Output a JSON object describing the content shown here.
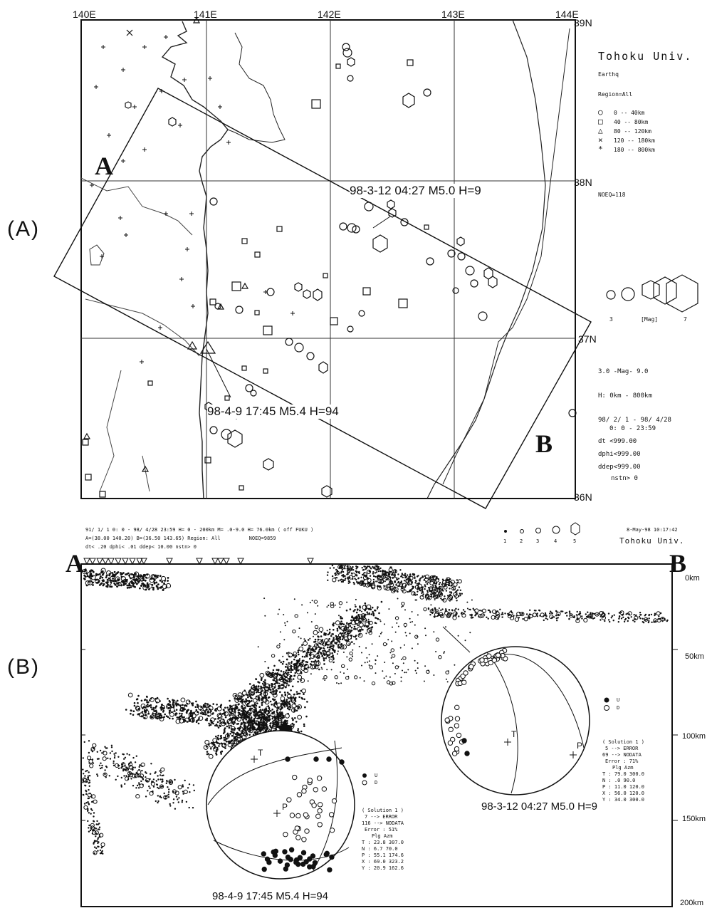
{
  "panel_a": {
    "label": "(A)",
    "lon_labels": [
      "140E",
      "141E",
      "142E",
      "143E",
      "144E"
    ],
    "lat_labels": [
      "39N",
      "38N",
      "37N",
      "36N"
    ],
    "section_start": "A",
    "section_end": "B",
    "event1_label": "98-3-12 04:27 M5.0 H=9",
    "event2_label": "98-4-9 17:45 M5.4 H=94",
    "sidebar": {
      "title": "Tohoku Univ.",
      "subtitle": "Earthq",
      "region": "Region=All",
      "depth_legend": [
        {
          "symbol": "○",
          "range": "0 -- 40km"
        },
        {
          "symbol": "□",
          "range": "40 -- 80km"
        },
        {
          "symbol": "△",
          "range": "80 -- 120km"
        },
        {
          "symbol": "×",
          "range": "120 -- 180km"
        },
        {
          "symbol": "*",
          "range": "180 -- 800km"
        }
      ],
      "noeq": "NOEQ=118",
      "mag_min": "3",
      "mag_unit": "[Mag]",
      "mag_max": "7",
      "mag_range": "3.0 -Mag- 9.0",
      "depth_range": "H: 0km - 800km",
      "date_range": "98/ 2/ 1 - 98/ 4/28",
      "time_range": "0: 0 - 23:59",
      "dt": "dt <999.00",
      "dphi": "dphi<999.00",
      "ddep": "ddep<999.00",
      "nstn": "nstn> 0"
    }
  },
  "panel_b": {
    "label": "(B)",
    "header_line1": "91/ 1/ 1 0: 0 - 98/ 4/28 23:59 H= 0 - 200km M= .0-9.0 H= 76.0km ( off FUKU )",
    "header_line2": "A=(38.00 140.20) B=(36.50 143.65) Region: All",
    "header_noeq": "NOEQ=9859",
    "header_line3": "dt< .20 dphi< .01 ddep< 10.00 nstn> 0",
    "mag_scale": [
      "1",
      "2",
      "3",
      "4",
      "5"
    ],
    "stamp": "8-May-98 10:17:42",
    "institution": "Tohoku Univ.",
    "section_start": "A",
    "section_end": "B",
    "depth_labels": [
      "0km",
      "50km",
      "100km",
      "150km",
      "200km"
    ],
    "mech1": {
      "caption": "98-3-12 04:27 M5.0 H=9",
      "legend_up": "U",
      "legend_down": "D",
      "solution": "( Solution 1 )",
      "error_count": "5 --> ERROR",
      "nodata_count": "69 --> NODATA",
      "error_pct": "Error : 71%",
      "table_header": "Plg Azm",
      "rows": [
        "T : 79.0 300.0",
        "N : .0 90.0",
        "P : 11.0 120.0",
        "X : 56.0 120.0",
        "Y : 34.0 300.0"
      ],
      "axis_t": "T",
      "axis_p": "P"
    },
    "mech2": {
      "caption": "98-4-9 17:45 M5.4 H=94",
      "legend_up": "U",
      "legend_down": "D",
      "solution": "( Solution 1 )",
      "error_count": "7 --> ERROR",
      "nodata_count": "116 --> NODATA",
      "error_pct": "Error : 51%",
      "table_header": "Plg Azm",
      "rows": [
        "T : 23.8 307.0",
        "N : 6.7 70.0",
        "P : 55.1 174.6",
        "X : 69.0 323.2",
        "Y : 20.9 162.6"
      ],
      "axis_t": "T",
      "axis_p": "P"
    }
  }
}
